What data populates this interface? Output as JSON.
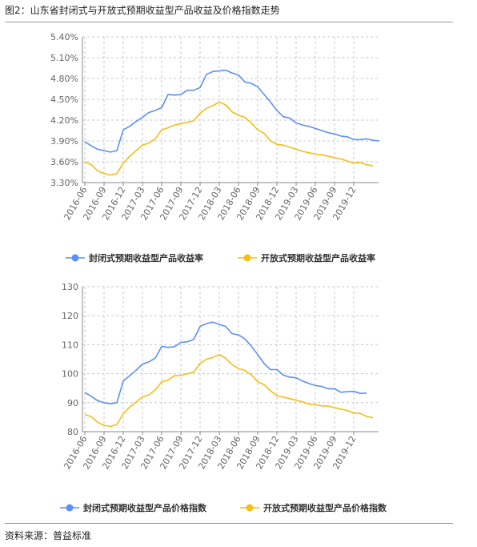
{
  "figure_title": "图2：山东省封闭式与开放式预期收益型产品收益及价格指数走势",
  "source_note": "资料来源：普益标准",
  "colors": {
    "blue": "#5b8ff9",
    "orange": "#f6bd16",
    "grid": "#c8c8c8",
    "axis": "#888888",
    "text": "#666666"
  },
  "chart_data": [
    {
      "type": "line",
      "title": "",
      "xlabel": "",
      "ylabel": "",
      "ylim": [
        0.033,
        0.054
      ],
      "yticks": [
        "3.30%",
        "3.60%",
        "3.90%",
        "4.20%",
        "4.50%",
        "4.80%",
        "5.10%",
        "5.40%"
      ],
      "x_tick_labels": [
        "2016-06",
        "2016-09",
        "2016-12",
        "2017-03",
        "2017-06",
        "2017-09",
        "2017-12",
        "2018-03",
        "2018-06",
        "2018-09",
        "2018-12",
        "2019-03",
        "2019-06",
        "2019-09",
        "2019-12"
      ],
      "grid": true,
      "legend_position": "bottom",
      "series": [
        {
          "name": "封闭式预期收益型产品收益率",
          "color": "#5b8ff9",
          "values": [
            0.0389,
            0.0383,
            0.0378,
            0.0376,
            0.0374,
            0.0376,
            0.0406,
            0.0411,
            0.0418,
            0.0424,
            0.0431,
            0.0434,
            0.0438,
            0.0457,
            0.0456,
            0.0457,
            0.0463,
            0.0463,
            0.0467,
            0.0486,
            0.049,
            0.0491,
            0.0492,
            0.0488,
            0.0485,
            0.0475,
            0.0473,
            0.0468,
            0.0457,
            0.0446,
            0.0434,
            0.0425,
            0.0423,
            0.0416,
            0.0413,
            0.0411,
            0.0408,
            0.0405,
            0.0402,
            0.04,
            0.0397,
            0.0396,
            0.0392,
            0.0392,
            0.0393,
            0.0391,
            0.039
          ]
        },
        {
          "name": "开放式预期收益型产品收益率",
          "color": "#f6bd16",
          "values": [
            0.036,
            0.0356,
            0.0347,
            0.0343,
            0.0341,
            0.0343,
            0.0358,
            0.0368,
            0.0376,
            0.0384,
            0.0387,
            0.0393,
            0.0406,
            0.0409,
            0.0413,
            0.0415,
            0.0417,
            0.0419,
            0.043,
            0.0437,
            0.0441,
            0.0446,
            0.0442,
            0.0432,
            0.0427,
            0.0424,
            0.0416,
            0.0406,
            0.0401,
            0.039,
            0.0385,
            0.0384,
            0.0381,
            0.0378,
            0.0375,
            0.0373,
            0.0371,
            0.037,
            0.0368,
            0.0366,
            0.0364,
            0.0361,
            0.0358,
            0.0359,
            0.0356,
            0.0354
          ]
        }
      ]
    },
    {
      "type": "line",
      "title": "",
      "xlabel": "",
      "ylabel": "",
      "ylim": [
        80,
        130
      ],
      "yticks": [
        "80",
        "90",
        "100",
        "110",
        "120",
        "130"
      ],
      "x_tick_labels": [
        "2016-06",
        "2016-09",
        "2016-12",
        "2017-03",
        "2017-06",
        "2017-09",
        "2017-12",
        "2018-03",
        "2018-06",
        "2018-09",
        "2018-12",
        "2019-03",
        "2019-06",
        "2019-09",
        "2019-12"
      ],
      "grid": true,
      "legend_position": "bottom",
      "series": [
        {
          "name": "封闭式预期收益型产品价格指数",
          "color": "#5b8ff9",
          "values": [
            93.5,
            92.2,
            90.7,
            90.0,
            89.6,
            90.0,
            97.5,
            99.3,
            101.2,
            103.3,
            104.1,
            105.4,
            109.4,
            109.1,
            109.3,
            110.8,
            111.0,
            111.8,
            116.3,
            117.3,
            117.8,
            117.0,
            116.3,
            113.8,
            113.4,
            112.0,
            109.5,
            106.6,
            103.5,
            101.4,
            101.4,
            99.5,
            98.8,
            98.6,
            97.5,
            96.6,
            95.9,
            95.6,
            94.8,
            94.8,
            93.6,
            93.8,
            93.9,
            93.2,
            93.3
          ]
        },
        {
          "name": "开放式预期收益型产品价格指数",
          "color": "#f6bd16",
          "values": [
            85.9,
            85.2,
            83.2,
            82.2,
            81.8,
            82.5,
            86.2,
            88.5,
            90.2,
            92.0,
            92.7,
            94.4,
            97.2,
            97.8,
            99.3,
            99.4,
            100.0,
            100.5,
            103.6,
            105.0,
            105.6,
            106.6,
            105.3,
            103.1,
            101.8,
            101.1,
            99.6,
            97.2,
            96.2,
            94.1,
            92.4,
            91.9,
            91.4,
            90.8,
            90.3,
            89.5,
            89.3,
            88.9,
            88.8,
            88.3,
            87.8,
            87.3,
            86.4,
            86.3,
            85.3,
            84.8
          ]
        }
      ]
    }
  ]
}
